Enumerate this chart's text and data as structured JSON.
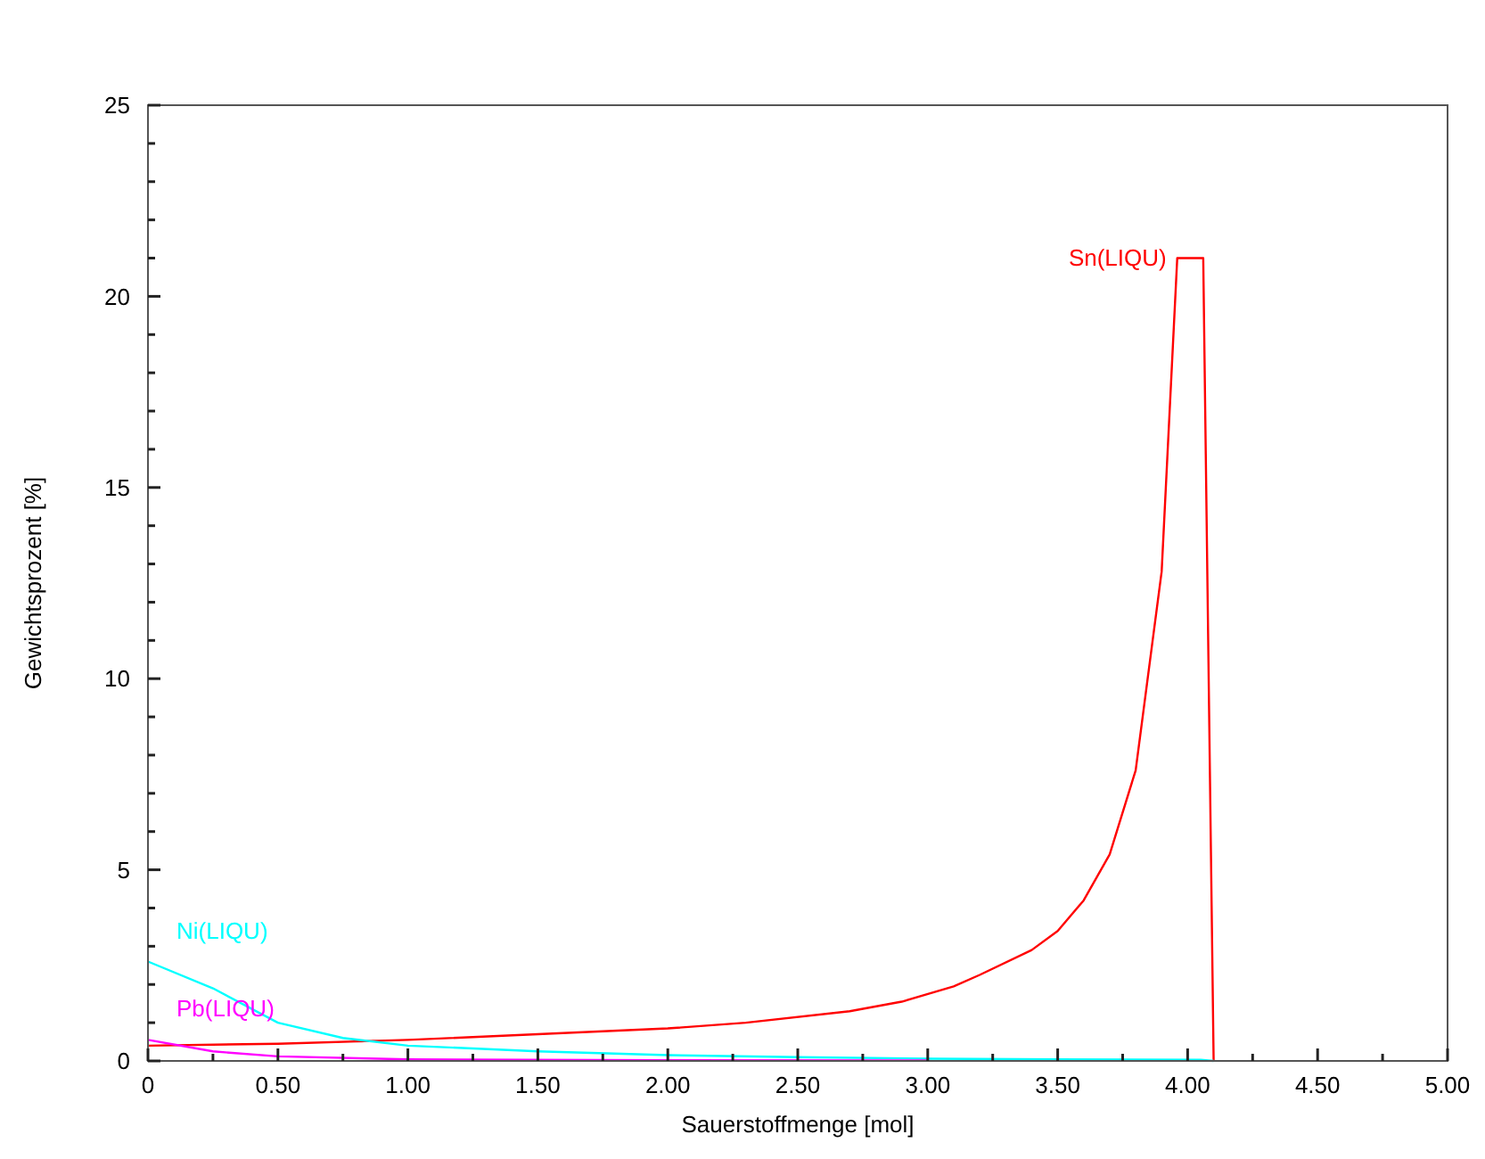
{
  "chart_data": {
    "type": "line",
    "xlabel": "Sauerstoffmenge [mol]",
    "ylabel": "Gewichtsprozent [%]",
    "xlim": [
      0,
      5
    ],
    "ylim": [
      0,
      25
    ],
    "xticks": [
      0,
      {
        "value": 0.25,
        "label": null
      },
      {
        "value": 0.5,
        "label": "0.50"
      },
      {
        "value": 0.75,
        "label": null
      },
      {
        "value": 1,
        "label": "1.00"
      },
      {
        "value": 1.25,
        "label": null
      },
      {
        "value": 1.5,
        "label": "1.50"
      },
      {
        "value": 1.75,
        "label": null
      },
      {
        "value": 2,
        "label": "2.00"
      },
      {
        "value": 2.25,
        "label": null
      },
      {
        "value": 2.5,
        "label": "2.50"
      },
      {
        "value": 2.75,
        "label": null
      },
      {
        "value": 3,
        "label": "3.00"
      },
      {
        "value": 3.25,
        "label": null
      },
      {
        "value": 3.5,
        "label": "3.50"
      },
      {
        "value": 3.75,
        "label": null
      },
      {
        "value": 4,
        "label": "4.00"
      },
      {
        "value": 4.25,
        "label": null
      },
      {
        "value": 4.5,
        "label": "4.50"
      },
      {
        "value": 4.75,
        "label": null
      },
      {
        "value": 5,
        "label": "5.00"
      }
    ],
    "yticks": [
      0,
      {
        "value": 1,
        "label": null
      },
      {
        "value": 2,
        "label": null
      },
      {
        "value": 3,
        "label": null
      },
      {
        "value": 4,
        "label": null
      },
      5,
      {
        "value": 6,
        "label": null
      },
      {
        "value": 7,
        "label": null
      },
      {
        "value": 8,
        "label": null
      },
      {
        "value": 9,
        "label": null
      },
      10,
      {
        "value": 11,
        "label": null
      },
      {
        "value": 12,
        "label": null
      },
      {
        "value": 13,
        "label": null
      },
      {
        "value": 14,
        "label": null
      },
      15,
      {
        "value": 16,
        "label": null
      },
      {
        "value": 17,
        "label": null
      },
      {
        "value": 18,
        "label": null
      },
      {
        "value": 19,
        "label": null
      },
      20,
      {
        "value": 21,
        "label": null
      },
      {
        "value": 22,
        "label": null
      },
      {
        "value": 23,
        "label": null
      },
      {
        "value": 24,
        "label": null
      },
      25
    ],
    "grid": false,
    "marker": "none",
    "line_style": "solid",
    "series": [
      {
        "name": "Sn(LIQU)",
        "color": "#ff0000",
        "x": [
          0,
          0.5,
          1,
          1.5,
          2,
          2.3,
          2.7,
          2.9,
          3.1,
          3.2,
          3.4,
          3.5,
          3.6,
          3.7,
          3.8,
          3.9,
          3.96,
          4.06,
          4.1
        ],
        "values": [
          0.4,
          0.45,
          0.55,
          0.7,
          0.85,
          1.0,
          1.3,
          1.55,
          1.95,
          2.25,
          2.9,
          3.4,
          4.2,
          5.4,
          7.6,
          12.8,
          21,
          21,
          0
        ]
      },
      {
        "name": "Ni(LIQU)",
        "color": "#00ffff",
        "x": [
          0,
          0.25,
          0.5,
          0.75,
          1,
          1.5,
          2,
          2.5,
          3,
          3.5,
          4.05,
          4.1
        ],
        "values": [
          2.6,
          1.9,
          1.0,
          0.6,
          0.4,
          0.25,
          0.15,
          0.1,
          0.06,
          0.04,
          0.03,
          0
        ]
      },
      {
        "name": "Pb(LIQU)",
        "color": "#ff00ff",
        "x": [
          0,
          0.25,
          0.5,
          1,
          2,
          3
        ],
        "values": [
          0.55,
          0.25,
          0.12,
          0.04,
          0.02,
          0.01
        ]
      }
    ]
  }
}
